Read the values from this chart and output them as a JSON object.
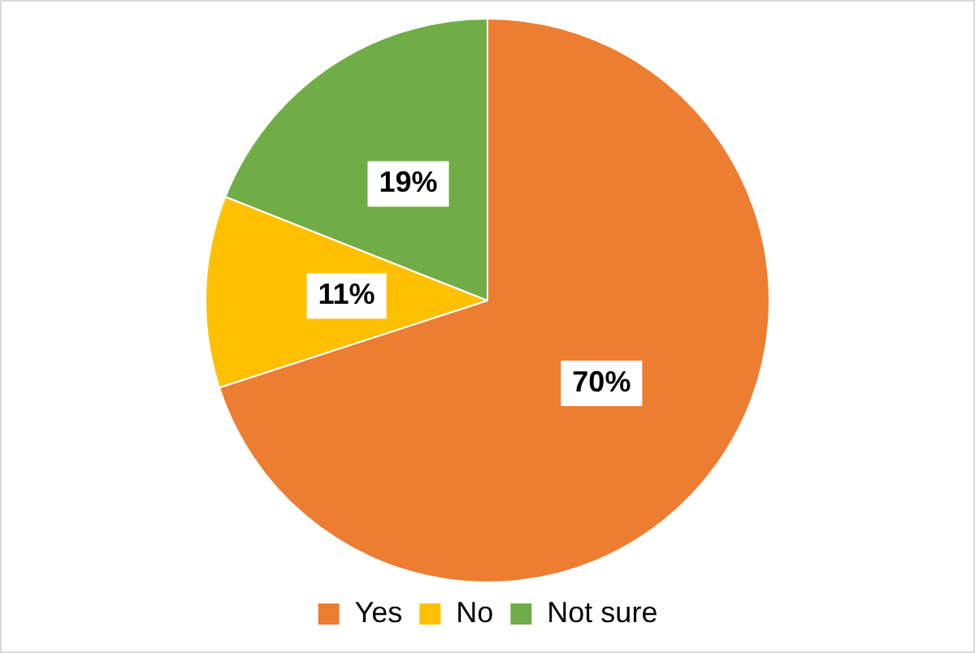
{
  "chart_data": {
    "type": "pie",
    "categories": [
      "Yes",
      "No",
      "Not sure"
    ],
    "values": [
      70,
      11,
      19
    ],
    "colors": [
      "#ed7d31",
      "#ffc000",
      "#70ad47"
    ],
    "value_labels": [
      "70%",
      "11%",
      "19%"
    ],
    "legend": "bottom"
  }
}
